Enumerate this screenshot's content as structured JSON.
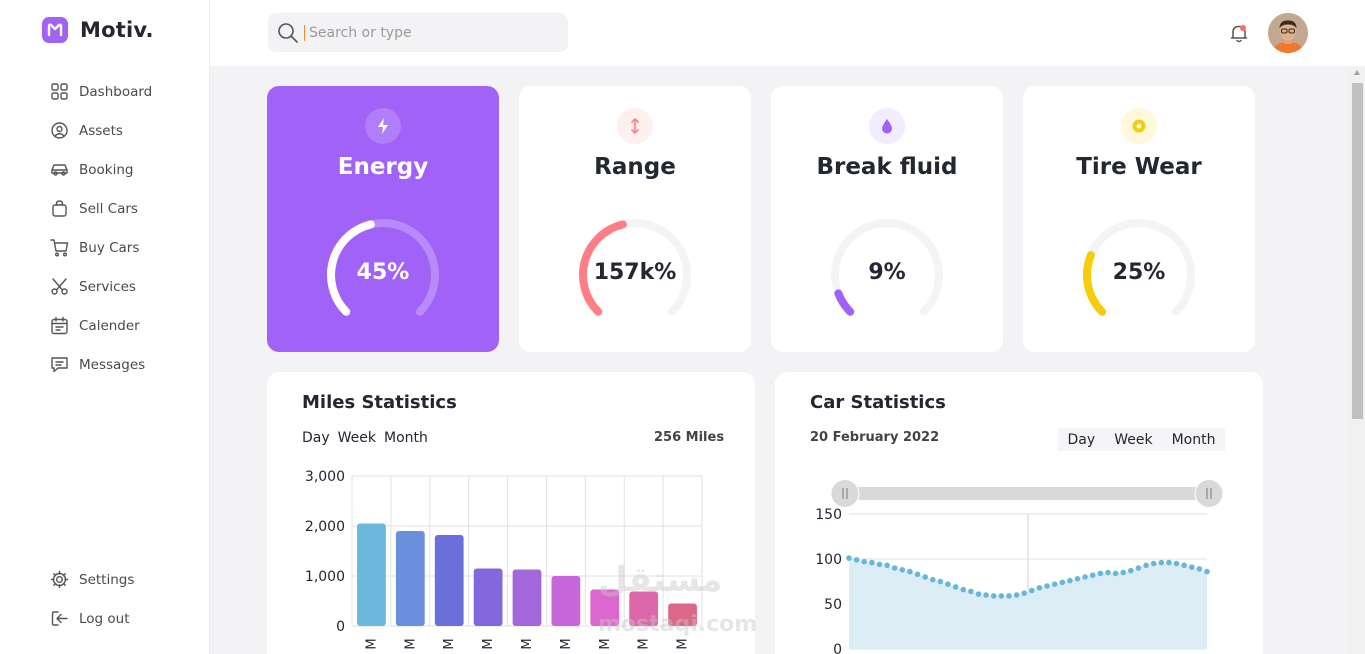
{
  "app": {
    "name": "Motiv."
  },
  "sidebar": {
    "items": [
      {
        "label": "Dashboard",
        "icon": "dashboard-icon"
      },
      {
        "label": "Assets",
        "icon": "assets-icon"
      },
      {
        "label": "Booking",
        "icon": "car-icon"
      },
      {
        "label": "Sell Cars",
        "icon": "bag-icon"
      },
      {
        "label": "Buy Cars",
        "icon": "cart-icon"
      },
      {
        "label": "Services",
        "icon": "scissors-icon"
      },
      {
        "label": "Calender",
        "icon": "calendar-icon"
      },
      {
        "label": "Messages",
        "icon": "message-icon"
      }
    ],
    "bottom": [
      {
        "label": "Settings",
        "icon": "gear-icon"
      },
      {
        "label": "Log out",
        "icon": "logout-icon"
      }
    ]
  },
  "search": {
    "placeholder": "Search or type"
  },
  "cards": [
    {
      "title": "Energy",
      "value": "45%",
      "percent": 45,
      "color": "#ffffff",
      "track": "#b98af9",
      "icon": "lightning-icon",
      "active": true
    },
    {
      "title": "Range",
      "value": "157k%",
      "percent": 45,
      "color": "#ff7e86",
      "track": "#f4f4f6",
      "icon": "range-arrows-icon",
      "active": false
    },
    {
      "title": "Break fluid",
      "value": "9%",
      "percent": 9,
      "color": "#a162f7",
      "track": "#f4f4f6",
      "icon": "drop-icon",
      "active": false
    },
    {
      "title": "Tire Wear",
      "value": "25%",
      "percent": 25,
      "color": "#f6cc0d",
      "track": "#f4f4f6",
      "icon": "tire-icon",
      "active": false
    }
  ],
  "miles": {
    "title": "Miles Statistics",
    "tabs": [
      "Day",
      "Week",
      "Month"
    ],
    "total": "256 Miles"
  },
  "carstats": {
    "title": "Car Statistics",
    "date": "20 February 2022",
    "tabs": [
      "Day",
      "Week",
      "Month"
    ]
  },
  "watermark": {
    "line1": "مستقل",
    "line2": "mostaqi.com"
  },
  "chart_data": [
    {
      "type": "bar",
      "categories": [
        "M",
        "M",
        "M",
        "M",
        "M",
        "M",
        "M",
        "M",
        "M"
      ],
      "values": [
        2050,
        1900,
        1820,
        1150,
        1130,
        1000,
        730,
        690,
        450
      ],
      "colors": [
        "#6cb8dc",
        "#6a8fdc",
        "#6a6fdc",
        "#8467dc",
        "#a367dc",
        "#c767dc",
        "#dc67ce",
        "#dc67ab",
        "#dc6788"
      ],
      "yticks": [
        "3,000",
        "2,000",
        "1,000",
        "0"
      ],
      "ylim": [
        0,
        3000
      ],
      "grid": true
    },
    {
      "type": "area",
      "x_range": [
        0,
        40
      ],
      "values": [
        101,
        99,
        97,
        96,
        94,
        93,
        90,
        88,
        86,
        83,
        80,
        77,
        75,
        72,
        69,
        66,
        64,
        61,
        60,
        59,
        59,
        59,
        60,
        62,
        65,
        68,
        70,
        72,
        74,
        76,
        78,
        80,
        82,
        84,
        85,
        84,
        85,
        87,
        90,
        93,
        95,
        96,
        96,
        95,
        93,
        91,
        89,
        86
      ],
      "yticks": [
        "150",
        "100",
        "50",
        "0"
      ],
      "ylim": [
        0,
        150
      ],
      "line_color": "#67b7dc",
      "fill_color": "#dcedf6",
      "grid": true
    }
  ]
}
